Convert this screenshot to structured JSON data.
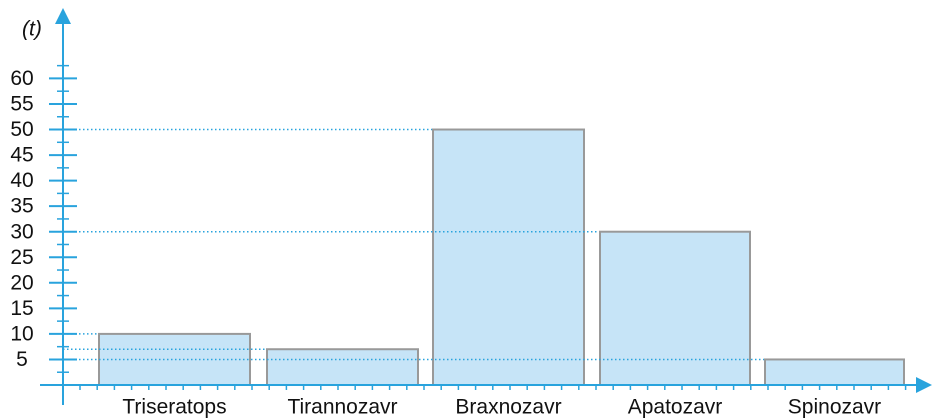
{
  "chart_data": {
    "type": "bar",
    "y_label": "(t)",
    "categories": [
      "Triseratops",
      "Tirannozavr",
      "Braxnozavr",
      "Apatozavr",
      "Spinozavr"
    ],
    "values": [
      10,
      7,
      50,
      30,
      5
    ],
    "color": "#c6e4f7",
    "axis_color": "#29a3dd",
    "ylim": [
      0,
      73
    ],
    "yticks": [
      5,
      10,
      15,
      20,
      25,
      30,
      35,
      40,
      45,
      50,
      55,
      60
    ],
    "minor_yticks": [
      2.5,
      7.5,
      12.5,
      17.5,
      22.5,
      27.5,
      32.5,
      37.5,
      42.5,
      47.5,
      52.5,
      57.5,
      62.5
    ],
    "guide_lines": true
  }
}
